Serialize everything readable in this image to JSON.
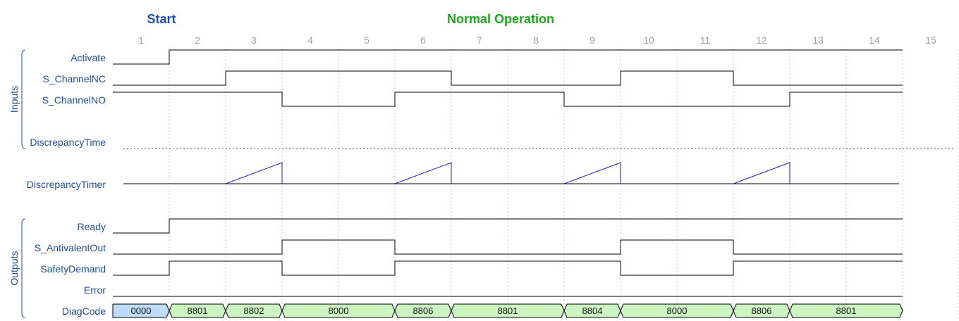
{
  "phases": {
    "start": "Start",
    "normal": "Normal Operation"
  },
  "cycles": [
    "1",
    "2",
    "3",
    "4",
    "5",
    "6",
    "7",
    "8",
    "9",
    "10",
    "11",
    "12",
    "13",
    "14",
    "15"
  ],
  "groups": {
    "inputs": "Inputs",
    "outputs": "Outputs"
  },
  "signals": {
    "activate": {
      "label": "Activate",
      "initial": 0,
      "toggles": [
        2
      ]
    },
    "s_channelnc": {
      "label": "S_ChannelNC",
      "initial": 0,
      "toggles": [
        3,
        7,
        10,
        12
      ]
    },
    "s_channelno": {
      "label": "S_ChannelNO",
      "initial": 1,
      "toggles": [
        4,
        6,
        9,
        13
      ]
    },
    "discrepancytime": {
      "label": "DiscrepancyTime"
    },
    "discrepancytimer": {
      "label": "DiscrepancyTimer",
      "ramps": [
        [
          3,
          4
        ],
        [
          6,
          7
        ],
        [
          9,
          10
        ],
        [
          12,
          13
        ]
      ]
    },
    "ready": {
      "label": "Ready",
      "initial": 0,
      "toggles": [
        2
      ]
    },
    "s_antivalentout": {
      "label": "S_AntivalentOut",
      "initial": 0,
      "toggles": [
        4,
        6,
        10,
        12
      ]
    },
    "safetydemand": {
      "label": "SafetyDemand",
      "initial": 0,
      "toggles": [
        2,
        4,
        6,
        10,
        12
      ]
    },
    "error": {
      "label": "Error",
      "initial": 0,
      "toggles": []
    },
    "diagcode": {
      "label": "DiagCode",
      "segments": [
        {
          "from": 1,
          "to": 2,
          "code": "0000",
          "color": "#bcdcf7"
        },
        {
          "from": 2,
          "to": 3,
          "code": "8801",
          "color": "#ccf5c2"
        },
        {
          "from": 3,
          "to": 4,
          "code": "8802",
          "color": "#ccf5c2"
        },
        {
          "from": 4,
          "to": 6,
          "code": "8000",
          "color": "#ccf5c2"
        },
        {
          "from": 6,
          "to": 7,
          "code": "8806",
          "color": "#ccf5c2"
        },
        {
          "from": 7,
          "to": 9,
          "code": "8801",
          "color": "#ccf5c2"
        },
        {
          "from": 9,
          "to": 10,
          "code": "8804",
          "color": "#ccf5c2"
        },
        {
          "from": 10,
          "to": 12,
          "code": "8000",
          "color": "#ccf5c2"
        },
        {
          "from": 12,
          "to": 13,
          "code": "8806",
          "color": "#ccf5c2"
        },
        {
          "from": 13,
          "to": 15,
          "code": "8801",
          "color": "#ccf5c2"
        }
      ]
    }
  },
  "colors": {
    "signal": "#000000",
    "timer": "#1a1acc",
    "grid": "#c8c8c8",
    "label": "#1a4fa0"
  }
}
